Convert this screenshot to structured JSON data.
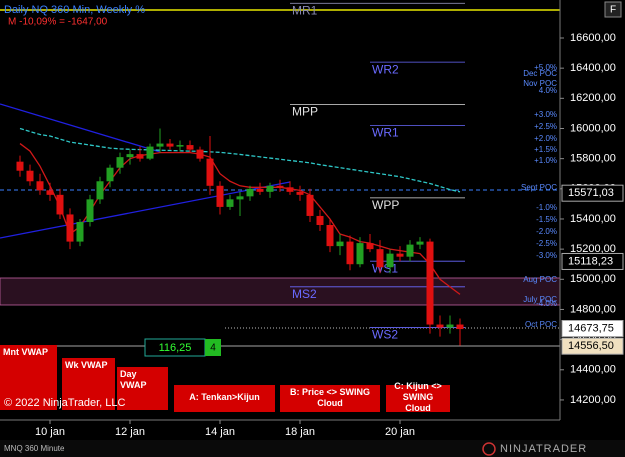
{
  "chart_data": {
    "type": "candlestick",
    "title": "Daily NQ 360 Min, Weekly %",
    "subtitle": "M -10,09% = -1647,00",
    "categories": [
      null,
      null,
      null,
      "10 jan",
      null,
      null,
      null,
      null,
      null,
      null,
      null,
      "12 jan",
      null,
      null,
      null,
      null,
      null,
      null,
      null,
      null,
      "14 jan",
      null,
      null,
      null,
      null,
      null,
      null,
      null,
      "18 jan",
      null,
      null,
      null,
      null,
      null,
      null,
      null,
      null,
      null,
      "20 jan",
      null,
      null,
      null,
      null,
      null,
      null
    ],
    "open": [
      15780,
      15720,
      15650,
      15590,
      15560,
      15430,
      15250,
      15380,
      15530,
      15650,
      15740,
      15810,
      15830,
      15800,
      15880,
      15900,
      15880,
      15890,
      15860,
      15800,
      15620,
      15480,
      15530,
      15550,
      15600,
      15580,
      15620,
      15610,
      15580,
      15560,
      15420,
      15360,
      15220,
      15250,
      15100,
      15240,
      15200,
      15080,
      15170,
      15150,
      15230,
      15250,
      14700,
      14680,
      14700
    ],
    "high": [
      15820,
      15760,
      15700,
      15640,
      15600,
      15470,
      15400,
      15560,
      15680,
      15760,
      15840,
      15860,
      15880,
      15900,
      16000,
      15930,
      15920,
      15920,
      15880,
      15950,
      15650,
      15560,
      15580,
      15620,
      15640,
      15640,
      15660,
      15650,
      15620,
      15600,
      15460,
      15400,
      15300,
      15290,
      15280,
      15300,
      15260,
      15200,
      15220,
      15260,
      15280,
      15270,
      14760,
      14760,
      14740
    ],
    "low": [
      15680,
      15620,
      15560,
      15520,
      15400,
      15200,
      15220,
      15350,
      15500,
      15610,
      15700,
      15760,
      15780,
      15790,
      15840,
      15860,
      15850,
      15840,
      15780,
      15560,
      15430,
      15460,
      15420,
      15520,
      15560,
      15540,
      15580,
      15560,
      15520,
      15380,
      15320,
      15180,
      15160,
      15060,
      15080,
      15180,
      15040,
      15040,
      15120,
      15120,
      15200,
      14640,
      14620,
      14640,
      14560
    ],
    "close": [
      15720,
      15650,
      15590,
      15560,
      15430,
      15250,
      15380,
      15530,
      15650,
      15740,
      15810,
      15830,
      15800,
      15880,
      15900,
      15880,
      15890,
      15860,
      15800,
      15620,
      15480,
      15530,
      15550,
      15600,
      15580,
      15620,
      15610,
      15580,
      15560,
      15420,
      15360,
      15220,
      15250,
      15100,
      15240,
      15200,
      15080,
      15170,
      15150,
      15230,
      15250,
      14700,
      14680,
      14700,
      14670
    ],
    "up_color": "#22a022",
    "down_color": "#e01010",
    "series": [
      {
        "color": "#2ec8c8",
        "dashed": true,
        "values": [
          16000,
          15980,
          15960,
          15950,
          15930,
          15910,
          15900,
          15890,
          15880,
          15870,
          15865,
          15862,
          15860,
          15858,
          15856,
          15854,
          15852,
          15850,
          15848,
          15845,
          15842,
          15835,
          15828,
          15820,
          15812,
          15804,
          15796,
          15788,
          15780,
          15772,
          15760,
          15750,
          15740,
          15730,
          15720,
          15710,
          15700,
          15690,
          15680,
          15665,
          15650,
          15635,
          15615,
          15595,
          15580
        ]
      },
      {
        "color": "#d01818",
        "dashed": false,
        "values": [
          15900,
          15850,
          15750,
          15620,
          15480,
          15300,
          15350,
          15450,
          15560,
          15650,
          15740,
          15800,
          15820,
          15830,
          15840,
          15840,
          15840,
          15840,
          15830,
          15810,
          15700,
          15650,
          15620,
          15610,
          15610,
          15610,
          15610,
          15600,
          15590,
          15560,
          15480,
          15400,
          15300,
          15280,
          15250,
          15240,
          15220,
          15200,
          15190,
          15180,
          15170,
          15100,
          15000,
          14950,
          14900
        ]
      }
    ],
    "ylim": [
      14067,
      16852
    ],
    "yticks": [
      {
        "value": 14200,
        "label": "14200,00"
      },
      {
        "value": 14400,
        "label": "14400,00"
      },
      {
        "value": 14600,
        "label": "14600,00"
      },
      {
        "value": 14800,
        "label": "14800,00"
      },
      {
        "value": 15000,
        "label": "15000,00"
      },
      {
        "value": 15200,
        "label": "15200,00"
      },
      {
        "value": 15400,
        "label": "15400,00"
      },
      {
        "value": 15600,
        "label": "15600,00"
      },
      {
        "value": 15800,
        "label": "15800,00"
      },
      {
        "value": 16000,
        "label": "16000,00"
      },
      {
        "value": 16200,
        "label": "16200,00"
      },
      {
        "value": 16400,
        "label": "16400,00"
      },
      {
        "value": 16600,
        "label": "16600,00"
      }
    ],
    "grid": false,
    "levels": [
      {
        "name": "MR1",
        "value": 16830,
        "color": "#8a8ab0"
      },
      {
        "name": "WR2",
        "value": 16440,
        "color": "#6a6aff"
      },
      {
        "name": "MPP",
        "value": 16160,
        "color": "#e0e0e0"
      },
      {
        "name": "WR1",
        "value": 16020,
        "color": "#6a6aff"
      },
      {
        "name": "WPP",
        "value": 15540,
        "color": "#e0e0e0"
      },
      {
        "name": "WS1",
        "value": 15120,
        "color": "#6a6aff"
      },
      {
        "name": "MS2",
        "value": 14950,
        "color": "#6a6aff"
      },
      {
        "name": "WS2",
        "value": 14680,
        "color": "#6a6aff"
      }
    ],
    "price_markers": [
      {
        "value": 15571.03,
        "label": "15571,03",
        "color": "#000000"
      },
      {
        "value": 15118.23,
        "label": "15118,23",
        "color": "#000000"
      },
      {
        "value": 14673.75,
        "label": "14673,75",
        "color": "#ffffff"
      },
      {
        "value": 14556.5,
        "label": "14556,50",
        "color": "#f0e0c0"
      }
    ],
    "percent_labels": [
      "+5.0%",
      "Dec POC",
      "Nov POC",
      "4.0%",
      "+3.0%",
      "+2.5%",
      "+2.0%",
      "+1.5%",
      "+1.0%",
      "Sept POC",
      "-1.0%",
      "-1.5%",
      "-2.0%",
      "-2.5%",
      "-3.0%",
      "Aug POC",
      "July POC",
      "-4.0%",
      "Oct POC"
    ]
  },
  "panel": {
    "buttons": [
      "Mnt VWAP",
      "Wk VWAP",
      "Day VWAP",
      "A: Tenkan>Kijun",
      "B: Price <> SWING Cloud",
      "C: Kijun <> SWING Cloud"
    ],
    "copyright": "© 2022 NinjaTrader, LLC",
    "instrument": "MNQ 360 Minute",
    "logo": "NINJATRADER",
    "counter": "116,25",
    "counter_badge": "4",
    "menu_button": "F"
  }
}
